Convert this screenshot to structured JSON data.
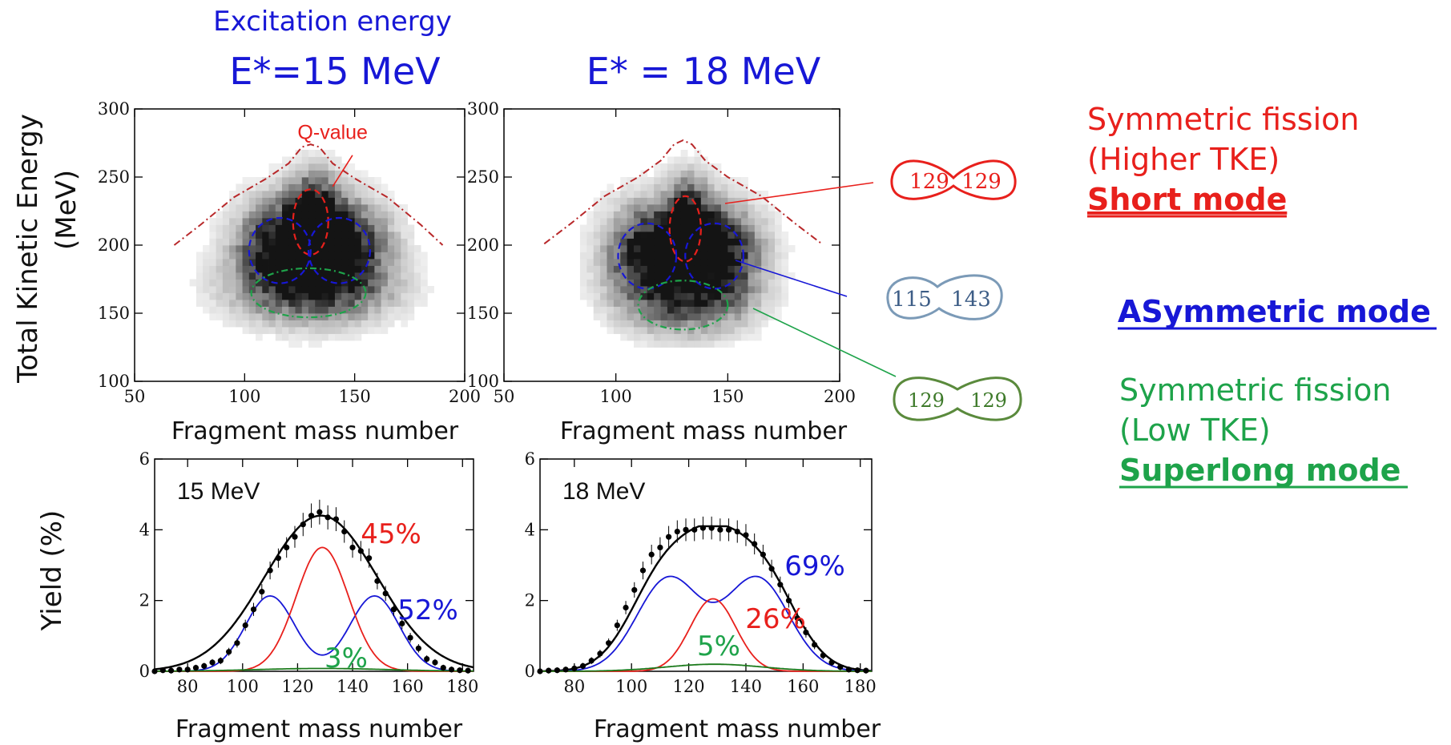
{
  "header": {
    "excitation_label": "Excitation energy",
    "energy_15": "E*=15 MeV",
    "energy_18": "E* = 18 MeV"
  },
  "axes": {
    "tke_ylabel_line1": "Total Kinetic Energy",
    "tke_ylabel_line2": "(MeV)",
    "mass_xlabel": "Fragment mass number",
    "yield_ylabel": "Yield (%)"
  },
  "modes": {
    "short": {
      "title1": "Symmetric fission",
      "title2": "(Higher TKE)",
      "name": "Short mode",
      "fragments": [
        "129",
        "129"
      ],
      "color": "#e8201c"
    },
    "asym": {
      "name": "ASymmetric mode",
      "fragments": [
        "115",
        "143"
      ],
      "color": "#1717d6",
      "shape_color": "#7b9ab7"
    },
    "superlong": {
      "title1": "Symmetric fission",
      "title2": "(Low TKE)",
      "name": "Superlong mode",
      "fragments": [
        "129",
        "129"
      ],
      "color": "#1ea34a",
      "shape_color": "#5a8a3c"
    }
  },
  "chart_data": [
    {
      "type": "heatmap",
      "id": "tke15",
      "xlim": [
        50,
        200
      ],
      "ylim": [
        100,
        300
      ],
      "xticks": [
        "50",
        "100",
        "150",
        "200"
      ],
      "yticks": [
        "100",
        "150",
        "200",
        "250",
        "300"
      ],
      "annotation": "Q-value",
      "qvalue_curve": {
        "x": [
          68,
          80,
          95,
          110,
          120,
          126,
          130,
          134,
          140,
          150,
          165,
          180,
          190
        ],
        "y": [
          200,
          215,
          235,
          249,
          260,
          272,
          274,
          272,
          260,
          249,
          235,
          215,
          200
        ]
      },
      "modes": [
        {
          "name": "short",
          "cx": 130,
          "cy": 217,
          "rx": 8,
          "ry": 24
        },
        {
          "name": "asym-left",
          "cx": 116,
          "cy": 196,
          "rx": 14,
          "ry": 24
        },
        {
          "name": "asym-right",
          "cx": 143,
          "cy": 196,
          "rx": 14,
          "ry": 24
        },
        {
          "name": "superlong",
          "cx": 129,
          "cy": 165,
          "rx": 26,
          "ry": 18
        }
      ]
    },
    {
      "type": "heatmap",
      "id": "tke18",
      "xlim": [
        50,
        200
      ],
      "ylim": [
        100,
        300
      ],
      "xticks": [
        "50",
        "100",
        "150",
        "200"
      ],
      "yticks": [
        "100",
        "150",
        "200",
        "250",
        "300"
      ],
      "qvalue_curve": {
        "x": [
          68,
          80,
          95,
          110,
          120,
          126,
          130,
          134,
          140,
          150,
          165,
          180,
          192
        ],
        "y": [
          201,
          216,
          236,
          250,
          262,
          274,
          277,
          274,
          262,
          250,
          236,
          216,
          201
        ]
      },
      "modes": [
        {
          "name": "short",
          "cx": 131,
          "cy": 212,
          "rx": 7,
          "ry": 24
        },
        {
          "name": "asym-left",
          "cx": 114,
          "cy": 192,
          "rx": 13,
          "ry": 24
        },
        {
          "name": "asym-right",
          "cx": 144,
          "cy": 192,
          "rx": 13,
          "ry": 24
        },
        {
          "name": "superlong",
          "cx": 130,
          "cy": 156,
          "rx": 20,
          "ry": 18
        }
      ]
    },
    {
      "type": "line",
      "id": "yield15",
      "label": "15 MeV",
      "xlim": [
        68,
        184
      ],
      "ylim": [
        0,
        6
      ],
      "xticks": [
        "80",
        "100",
        "120",
        "140",
        "160",
        "180"
      ],
      "yticks": [
        "0",
        "2",
        "4",
        "6"
      ],
      "series": [
        {
          "color": "#000000",
          "kind": "total",
          "peaks": [
            {
              "mu": 128.5,
              "sigma": 20.5,
              "amp": 4.4
            }
          ]
        },
        {
          "color": "#1717d6",
          "kind": "asym",
          "peaks": [
            {
              "mu": 110,
              "sigma": 9,
              "amp": 2.13
            },
            {
              "mu": 148,
              "sigma": 9,
              "amp": 2.13
            }
          ]
        },
        {
          "color": "#e8201c",
          "kind": "sym",
          "peaks": [
            {
              "mu": 129,
              "sigma": 9.5,
              "amp": 3.5
            }
          ]
        },
        {
          "color": "#1b7a1b",
          "kind": "superlong",
          "peaks": [
            {
              "mu": 129,
              "sigma": 24,
              "amp": 0.08
            }
          ]
        }
      ],
      "points": {
        "x": [
          68,
          71,
          74,
          77,
          80,
          83,
          86,
          89,
          92,
          95,
          98,
          101,
          104,
          107,
          110,
          113,
          116,
          119,
          122,
          125,
          128,
          131,
          134,
          137,
          140,
          143,
          146,
          149,
          152,
          155,
          158,
          161,
          164,
          167,
          170,
          173,
          176,
          179,
          182
        ],
        "y": [
          0,
          0.03,
          0.02,
          0.05,
          0.05,
          0.1,
          0.15,
          0.25,
          0.3,
          0.55,
          0.8,
          1.3,
          1.75,
          2.25,
          2.85,
          3.2,
          3.5,
          3.8,
          4.15,
          4.4,
          4.5,
          4.35,
          4.3,
          3.95,
          3.5,
          3.4,
          3.2,
          2.55,
          2.2,
          1.75,
          1.35,
          0.95,
          0.65,
          0.35,
          0.25,
          0.1,
          0.05,
          0.03,
          0.02
        ]
      },
      "percent_labels": [
        {
          "text": "45%",
          "color": "#e8201c"
        },
        {
          "text": "52%",
          "color": "#1717d6"
        },
        {
          "text": "3%",
          "color": "#1ea34a"
        }
      ]
    },
    {
      "type": "line",
      "id": "yield18",
      "label": "18 MeV",
      "xlim": [
        68,
        184
      ],
      "ylim": [
        0,
        6
      ],
      "xticks": [
        "80",
        "100",
        "120",
        "140",
        "160",
        "180"
      ],
      "yticks": [
        "0",
        "2",
        "4",
        "6"
      ],
      "series": [
        {
          "color": "#000000",
          "kind": "total",
          "peaks": [
            {
              "mu": 112,
              "sigma": 12,
              "amp": 2.8
            },
            {
              "mu": 145,
              "sigma": 12,
              "amp": 2.8
            },
            {
              "mu": 128.5,
              "sigma": 10,
              "amp": 2.0
            }
          ]
        },
        {
          "color": "#1717d6",
          "kind": "asym",
          "peaks": [
            {
              "mu": 113,
              "sigma": 11,
              "amp": 2.63
            },
            {
              "mu": 144,
              "sigma": 11,
              "amp": 2.63
            }
          ]
        },
        {
          "color": "#e8201c",
          "kind": "sym",
          "peaks": [
            {
              "mu": 128.5,
              "sigma": 8,
              "amp": 2.05
            }
          ]
        },
        {
          "color": "#1b7a1b",
          "kind": "superlong",
          "peaks": [
            {
              "mu": 129,
              "sigma": 17,
              "amp": 0.2
            }
          ]
        }
      ],
      "points": {
        "x": [
          68,
          71,
          74,
          77,
          80,
          83,
          86,
          89,
          92,
          95,
          98,
          101,
          104,
          107,
          110,
          113,
          116,
          119,
          122,
          125,
          128,
          131,
          134,
          137,
          140,
          143,
          146,
          149,
          152,
          155,
          158,
          161,
          164,
          167,
          170,
          173,
          176,
          179,
          182
        ],
        "y": [
          0,
          0.02,
          0.03,
          0.05,
          0.08,
          0.15,
          0.3,
          0.5,
          0.8,
          1.3,
          1.8,
          2.3,
          2.85,
          3.3,
          3.5,
          3.8,
          3.95,
          4.0,
          4.0,
          4.05,
          4.05,
          4.0,
          4.0,
          3.95,
          3.85,
          3.6,
          3.3,
          2.9,
          2.45,
          2.0,
          1.5,
          1.1,
          0.75,
          0.45,
          0.25,
          0.12,
          0.05,
          0.03,
          0.02
        ]
      },
      "percent_labels": [
        {
          "text": "69%",
          "color": "#1717d6"
        },
        {
          "text": "26%",
          "color": "#e8201c"
        },
        {
          "text": "5%",
          "color": "#1ea34a"
        }
      ]
    }
  ]
}
